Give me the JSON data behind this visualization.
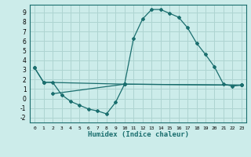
{
  "title": "",
  "xlabel": "Humidex (Indice chaleur)",
  "bg_color": "#ccecea",
  "grid_color": "#aed4d1",
  "line_color": "#1a6e6e",
  "xlim": [
    -0.5,
    23.5
  ],
  "ylim": [
    -2.5,
    9.8
  ],
  "yticks": [
    -2,
    -1,
    0,
    1,
    2,
    3,
    4,
    5,
    6,
    7,
    8,
    9
  ],
  "xticks": [
    0,
    1,
    2,
    3,
    4,
    5,
    6,
    7,
    8,
    9,
    10,
    11,
    12,
    13,
    14,
    15,
    16,
    17,
    18,
    19,
    20,
    21,
    22,
    23
  ],
  "line1_x": [
    0,
    1,
    2,
    3,
    4,
    5,
    6,
    7,
    8,
    9,
    10,
    11,
    12,
    13,
    14,
    15,
    16,
    17,
    18,
    19,
    20,
    21,
    22,
    23
  ],
  "line1_y": [
    3.2,
    1.7,
    1.7,
    0.4,
    -0.3,
    -0.7,
    -1.1,
    -1.3,
    -1.6,
    -0.4,
    1.5,
    6.3,
    8.3,
    9.3,
    9.3,
    8.9,
    8.5,
    7.4,
    5.8,
    4.6,
    3.3,
    1.5,
    1.3,
    1.4
  ],
  "line2_x": [
    0,
    1,
    10,
    23
  ],
  "line2_y": [
    3.2,
    1.7,
    1.5,
    1.4
  ],
  "line3_x": [
    2,
    10,
    23
  ],
  "line3_y": [
    0.5,
    1.5,
    1.4
  ]
}
